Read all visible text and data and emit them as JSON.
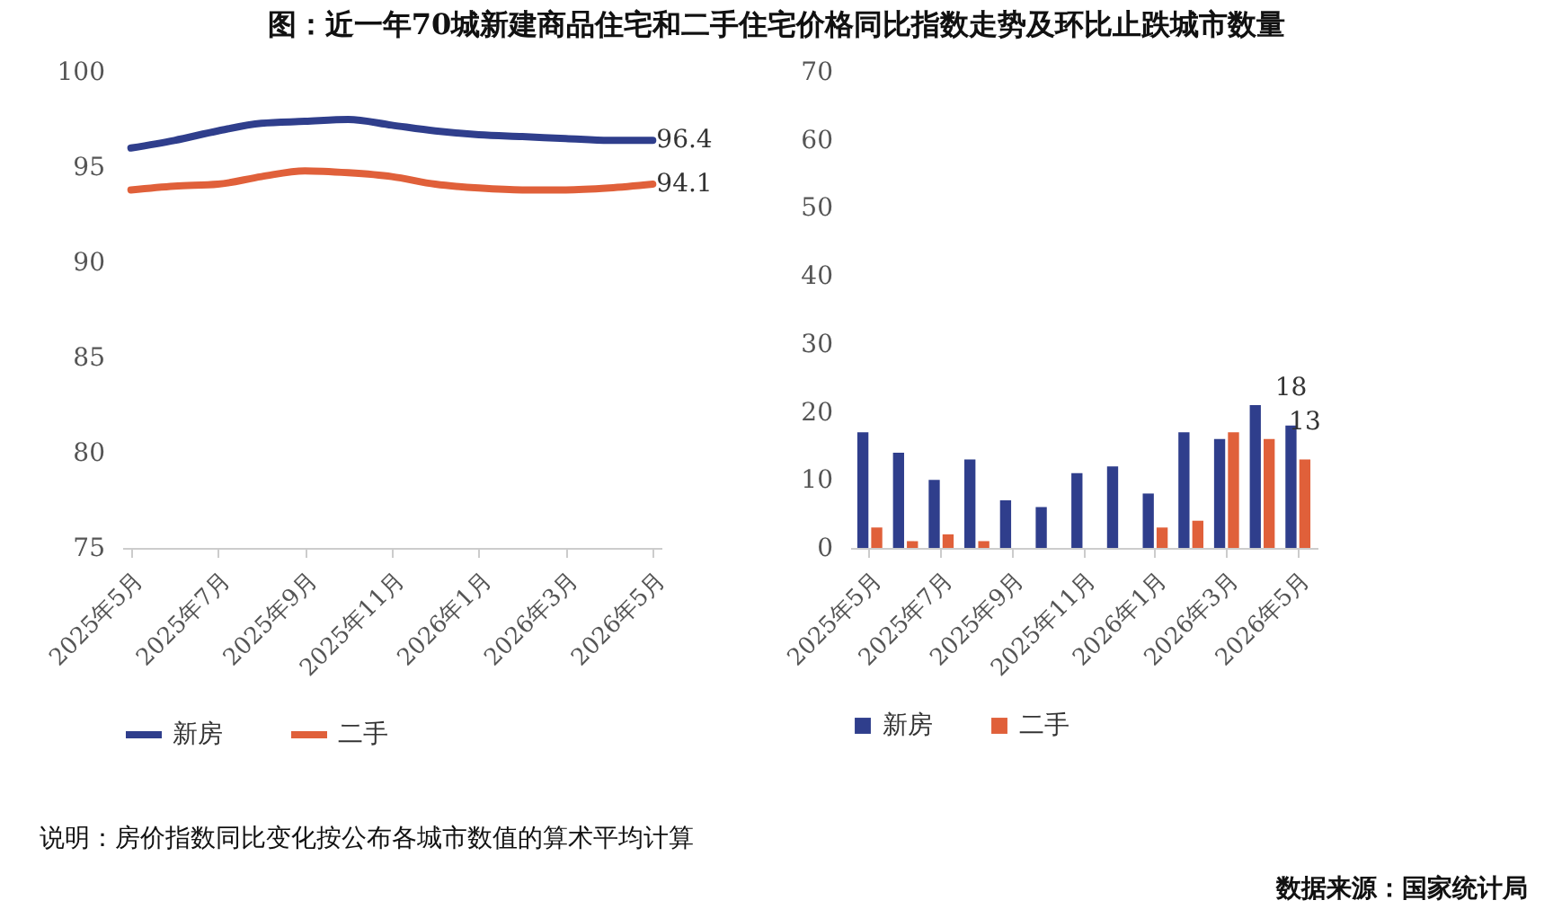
{
  "chart_data": [
    {
      "type": "line",
      "title": "图：近一年70城新建商品住宅和二手住宅价格同比指数走势及环比止跌城市数量",
      "categories": [
        "2025年5月",
        null,
        "2025年7月",
        null,
        "2025年9月",
        null,
        "2025年11月",
        null,
        "2026年1月",
        null,
        "2026年3月",
        null,
        "2026年5月"
      ],
      "series": [
        {
          "name": "新房",
          "color": "#2f3e8c",
          "values": [
            96.0,
            96.4,
            96.9,
            97.3,
            97.4,
            97.5,
            97.2,
            96.9,
            96.7,
            96.6,
            96.5,
            96.4,
            96.4
          ],
          "value_labels": [
            null,
            null,
            null,
            null,
            null,
            null,
            null,
            null,
            null,
            null,
            null,
            null,
            "96.4"
          ]
        },
        {
          "name": "二手",
          "color": "#e0603a",
          "values": [
            93.8,
            94.0,
            94.1,
            94.5,
            94.8,
            94.7,
            94.5,
            94.1,
            93.9,
            93.8,
            93.8,
            93.9,
            94.1
          ],
          "value_labels": [
            null,
            null,
            null,
            null,
            null,
            null,
            null,
            null,
            null,
            null,
            null,
            null,
            "94.1"
          ]
        }
      ],
      "ylim": [
        75,
        100
      ],
      "yticks": [
        75,
        80,
        85,
        90,
        95,
        100
      ],
      "grid": false,
      "legend": "bottom",
      "annotations": [
        "说明：房价指数同比变化按公布各城市数值的算术平均计算",
        "数据来源：国家统计局"
      ]
    },
    {
      "type": "bar",
      "categories": [
        "2025年5月",
        null,
        "2025年7月",
        null,
        "2025年9月",
        null,
        "2025年11月",
        null,
        "2026年1月",
        null,
        "2026年3月",
        null,
        "2026年5月"
      ],
      "series": [
        {
          "name": "新房",
          "color": "#2f3e8c",
          "values": [
            17,
            14,
            10,
            13,
            7,
            6,
            11,
            12,
            8,
            17,
            16,
            21,
            18
          ],
          "value_labels": [
            null,
            null,
            null,
            null,
            null,
            null,
            null,
            null,
            null,
            null,
            null,
            null,
            "18"
          ]
        },
        {
          "name": "二手",
          "color": "#e0603a",
          "values": [
            3,
            1,
            2,
            1,
            0,
            0,
            0,
            0,
            3,
            4,
            17,
            16,
            13
          ],
          "value_labels": [
            null,
            null,
            null,
            null,
            null,
            null,
            null,
            null,
            null,
            null,
            null,
            null,
            "13"
          ]
        }
      ],
      "ylim": [
        0,
        70
      ],
      "yticks": [
        0,
        10,
        20,
        30,
        40,
        50,
        60,
        70
      ],
      "grid": false,
      "legend": "bottom"
    }
  ]
}
